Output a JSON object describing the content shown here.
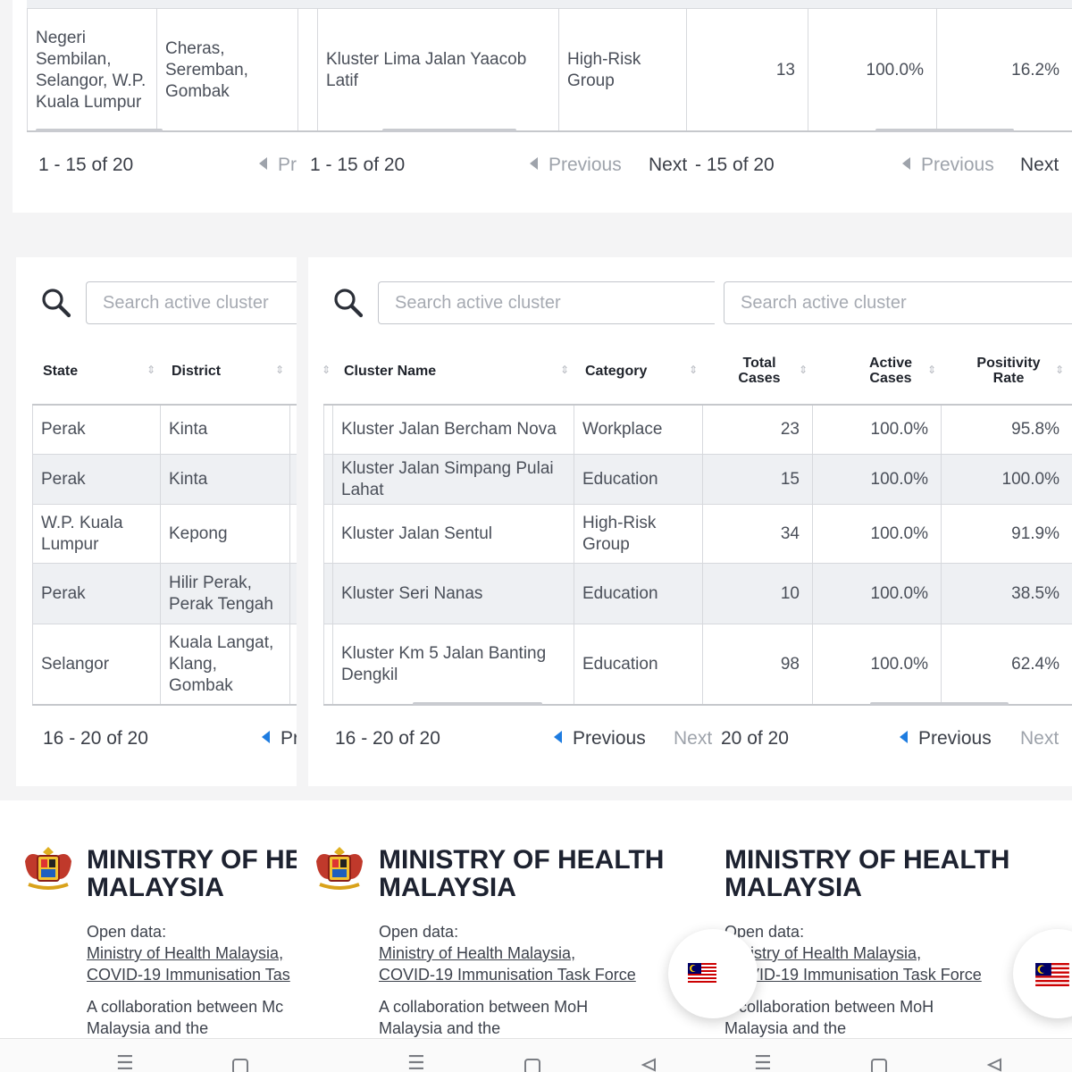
{
  "top_panel": {
    "row": {
      "state": "Negeri Sembilan, Selangor, W.P. Kuala Lumpur",
      "district": "Cheras, Seremban, Gombak",
      "cluster": "Kluster Lima Jalan Yaacob Latif",
      "category": "High-Risk Group",
      "total": "13",
      "active": "100.0%",
      "positivity": "16.2%"
    },
    "pager": {
      "range_a": "1 - 15 of 20",
      "prev_short": "Pr",
      "range_b": "1 - 15 of 20",
      "previous": "Previous",
      "next_a": "Next",
      "range_c": "- 15 of 20",
      "previous_b": "Previous",
      "next_b": "Next"
    }
  },
  "search": {
    "placeholder": "Search active cluster"
  },
  "headers": {
    "state": "State",
    "district": "District",
    "cluster": "Cluster Name",
    "category": "Category",
    "total_1": "Total",
    "total_2": "Cases",
    "active_1": "Active",
    "active_2": "Cases",
    "pos_1": "Positivity",
    "pos_2": "Rate"
  },
  "rows": [
    {
      "state": "Perak",
      "district": "Kinta",
      "cluster": "Kluster Jalan Bercham Nova",
      "category": "Workplace",
      "total": "23",
      "active": "100.0%",
      "positivity": "95.8%"
    },
    {
      "state": "Perak",
      "district": "Kinta",
      "cluster": "Kluster Jalan Simpang Pulai Lahat",
      "category": "Education",
      "total": "15",
      "active": "100.0%",
      "positivity": "100.0%"
    },
    {
      "state": "W.P. Kuala Lumpur",
      "district": "Kepong",
      "cluster": "Kluster Jalan Sentul",
      "category": "High-Risk Group",
      "total": "34",
      "active": "100.0%",
      "positivity": "91.9%"
    },
    {
      "state": "Perak",
      "district": "Hilir Perak, Perak Tengah",
      "cluster": "Kluster Seri Nanas",
      "category": "Education",
      "total": "10",
      "active": "100.0%",
      "positivity": "38.5%"
    },
    {
      "state": "Selangor",
      "district": "Kuala Langat, Klang, Gombak",
      "cluster": "Kluster Km 5 Jalan Banting Dengkil",
      "category": "Education",
      "total": "98",
      "active": "100.0%",
      "positivity": "62.4%"
    }
  ],
  "bottom_pager": {
    "range_a": "16 - 20 of 20",
    "prev_short": "Pr",
    "range_b": "16 - 20 of 20",
    "previous": "Previous",
    "next_a": "Next",
    "range_c": "20 of 20",
    "previous_b": "Previous",
    "next_b": "Next"
  },
  "footer": {
    "ministry_line1": "MINISTRY OF HEALTH",
    "ministry_line1_clipped": "MINISTRY OF HE",
    "ministry_line2": "MALAYSIA",
    "open_data": "Open data:",
    "link1": "Ministry of Health Malaysia,",
    "link2": "COVID-19 Immunisation Task Force",
    "link2_clipped": "COVID-19 Immunisation Tas",
    "collab1": "A collaboration between MoH",
    "collab1_clipped": "A collaboration between Mc",
    "collab2": "Malaysia and the"
  },
  "colors": {
    "accent": "#1e7ce0",
    "row_alt": "#eef0f3",
    "page_bg": "#f4f4f5",
    "text_dark": "#1d2230"
  },
  "icons": [
    "search-icon",
    "coat-of-arms-logo",
    "malaysia-flag-icon",
    "menu-nav-icon",
    "home-nav-icon",
    "back-nav-icon"
  ]
}
